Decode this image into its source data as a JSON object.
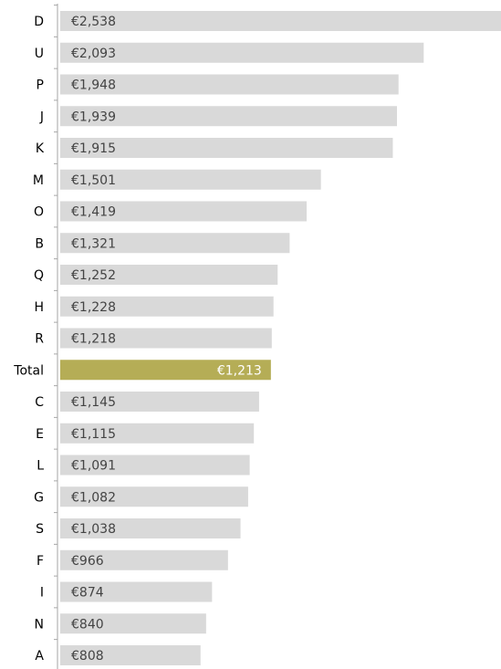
{
  "chart_data": {
    "type": "bar",
    "orientation": "horizontal",
    "title": "",
    "xlabel": "",
    "ylabel": "",
    "grid": false,
    "legend": "none",
    "categories": [
      "D",
      "U",
      "P",
      "J",
      "K",
      "M",
      "O",
      "B",
      "Q",
      "H",
      "R",
      "Total",
      "C",
      "E",
      "L",
      "G",
      "S",
      "F",
      "I",
      "N",
      "A"
    ],
    "values": [
      2538,
      2093,
      1948,
      1939,
      1915,
      1501,
      1419,
      1321,
      1252,
      1228,
      1218,
      1213,
      1145,
      1115,
      1091,
      1082,
      1038,
      966,
      874,
      840,
      808
    ],
    "value_labels": [
      "€2,538",
      "€2,093",
      "€1,948",
      "€1,939",
      "€1,915",
      "€1,501",
      "€1,419",
      "€1,321",
      "€1,252",
      "€1,228",
      "€1,218",
      "€1,213",
      "€1,145",
      "€1,115",
      "€1,091",
      "€1,082",
      "€1,038",
      "€966",
      "€874",
      "€840",
      "€808"
    ],
    "highlight_category": "Total",
    "xlim": [
      0,
      2538
    ],
    "colors": {
      "bar": "#d9d9d9",
      "highlight_bar": "#b5ad56",
      "axis": "#a6a6a6",
      "label": "#000000",
      "value_label": "#444444",
      "highlight_value_label": "#ffffff"
    }
  }
}
